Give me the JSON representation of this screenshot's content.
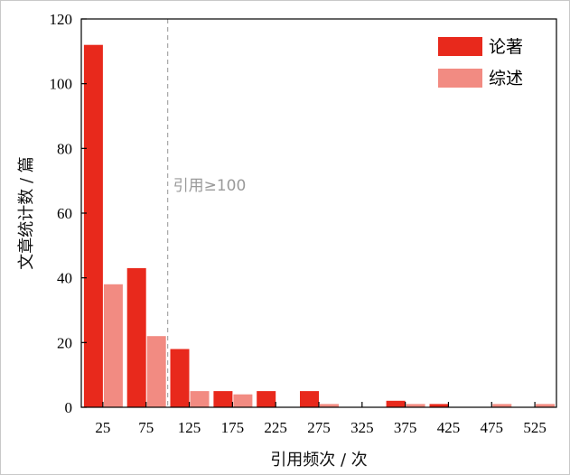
{
  "chart_data": {
    "type": "bar",
    "xlabel": "引用频次 / 次",
    "ylabel": "文章统计数 / 篇",
    "ylim": [
      0,
      120
    ],
    "yticks": [
      0,
      20,
      40,
      60,
      80,
      100,
      120
    ],
    "xlim": [
      0,
      550
    ],
    "categories": [
      25,
      75,
      125,
      175,
      225,
      275,
      325,
      375,
      425,
      475,
      525
    ],
    "tick_labels": [
      "25",
      "75",
      "125",
      "175",
      "225",
      "275",
      "325",
      "375",
      "425",
      "475",
      "525"
    ],
    "series": [
      {
        "name": "论著",
        "color": "#e8291c",
        "values": [
          112,
          43,
          18,
          5,
          5,
          5,
          0,
          2,
          1,
          0,
          0
        ]
      },
      {
        "name": "综述",
        "color": "#f28b82",
        "values": [
          38,
          22,
          5,
          4,
          0,
          1,
          0,
          1,
          0,
          1,
          1
        ]
      }
    ],
    "reference_line": {
      "x": 100,
      "label": "引用≥100"
    },
    "legend_position": "top-right",
    "grid": false
  }
}
